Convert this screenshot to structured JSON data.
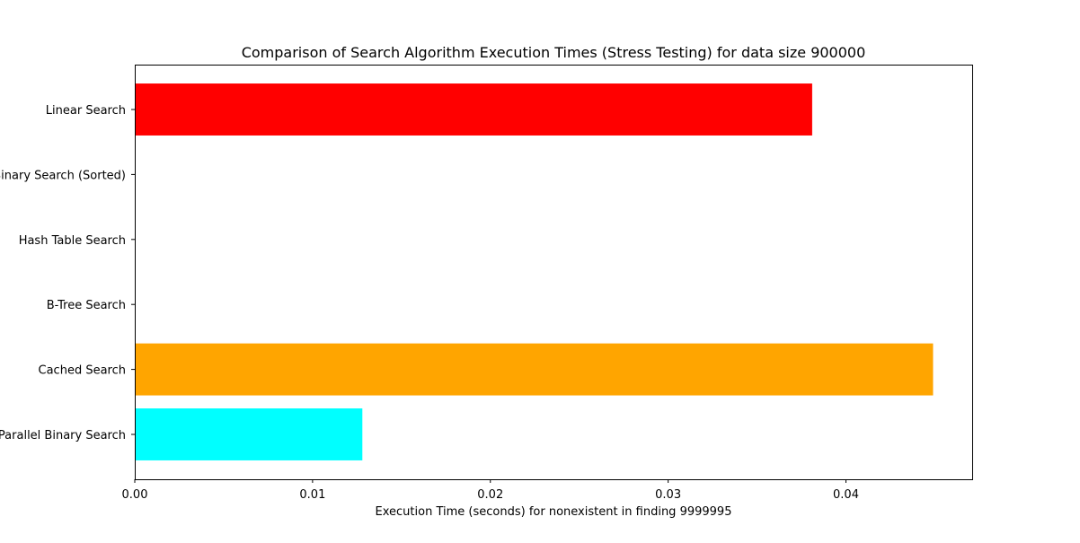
{
  "chart_data": {
    "type": "bar",
    "orientation": "horizontal",
    "title": "Comparison of Search Algorithm Execution Times (Stress Testing) for data size 900000",
    "xlabel": "Execution Time (seconds) for nonexistent in finding 9999995",
    "ylabel": "",
    "categories": [
      "Linear Search",
      "Binary Search (Sorted)",
      "Hash Table Search",
      "B-Tree Search",
      "Cached Search",
      "Parallel Binary Search"
    ],
    "values": [
      0.0381,
      0.0,
      0.0,
      0.0,
      0.0449,
      0.0128
    ],
    "colors": [
      "#ff0000",
      "#0000ff",
      "#008000",
      "#800080",
      "#ffa500",
      "#00ffff"
    ],
    "xlim": [
      0,
      0.0471
    ],
    "xticks": [
      0.0,
      0.01,
      0.02,
      0.03,
      0.04
    ],
    "xtick_labels": [
      "0.00",
      "0.01",
      "0.02",
      "0.03",
      "0.04"
    ],
    "grid": false,
    "legend": "none"
  }
}
